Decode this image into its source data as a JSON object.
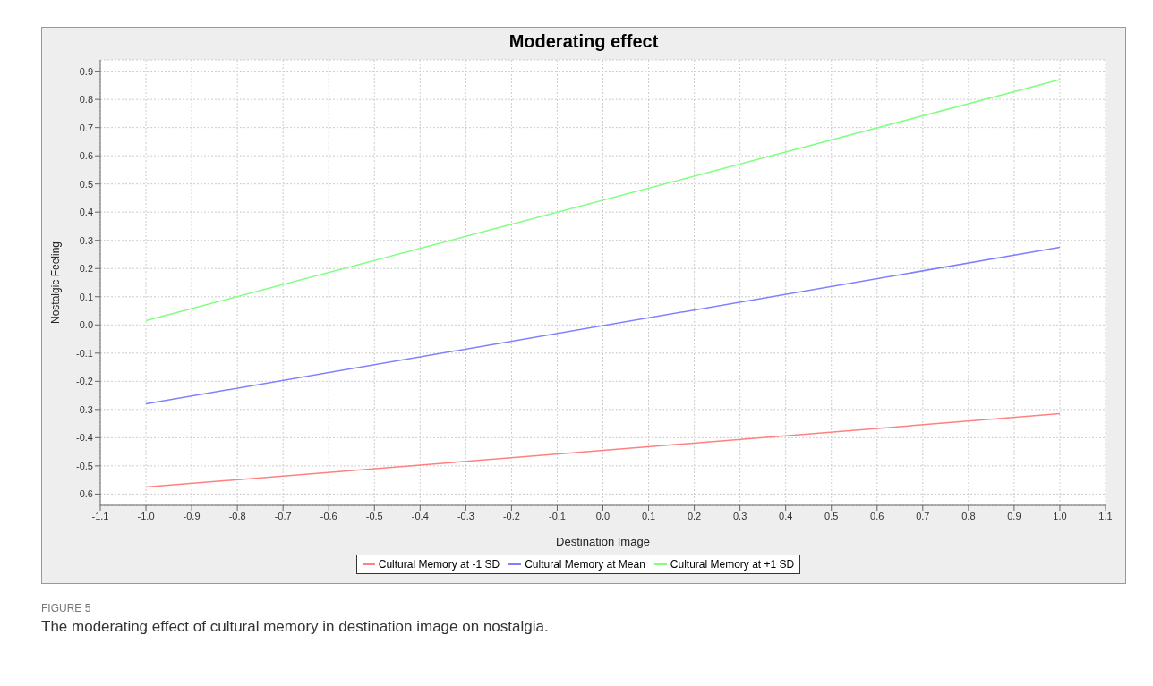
{
  "chart_data": {
    "type": "line",
    "title": "Moderating effect",
    "xlabel": "Destination Image",
    "ylabel": "Nostalgic Feeling",
    "x": [
      -1.0,
      1.0
    ],
    "series": [
      {
        "name": "Cultural Memory at -1 SD",
        "color": "#ff8080",
        "values": [
          -0.575,
          -0.315
        ]
      },
      {
        "name": "Cultural Memory at Mean",
        "color": "#8080ff",
        "values": [
          -0.28,
          0.275
        ]
      },
      {
        "name": "Cultural Memory at +1 SD",
        "color": "#80ff80",
        "values": [
          0.015,
          0.87
        ]
      }
    ],
    "xlim": [
      -1.1,
      1.1
    ],
    "xticks": [
      {
        "value": -1.1,
        "label": "-1.1"
      },
      {
        "value": -1.0,
        "label": "-1.0"
      },
      {
        "value": -0.9,
        "label": "-0.9"
      },
      {
        "value": -0.8,
        "label": "-0.8"
      },
      {
        "value": -0.7,
        "label": "-0.7"
      },
      {
        "value": -0.6,
        "label": "-0.6"
      },
      {
        "value": -0.5,
        "label": "-0.5"
      },
      {
        "value": -0.4,
        "label": "-0.4"
      },
      {
        "value": -0.3,
        "label": "-0.3"
      },
      {
        "value": -0.2,
        "label": "-0.2"
      },
      {
        "value": -0.1,
        "label": "-0.1"
      },
      {
        "value": 0,
        "label": "0.0"
      },
      {
        "value": 0.1,
        "label": "0.1"
      },
      {
        "value": 0.2,
        "label": "0.2"
      },
      {
        "value": 0.3,
        "label": "0.3"
      },
      {
        "value": 0.4,
        "label": "0.4"
      },
      {
        "value": 0.5,
        "label": "0.5"
      },
      {
        "value": 0.6,
        "label": "0.6"
      },
      {
        "value": 0.7,
        "label": "0.7"
      },
      {
        "value": 0.8,
        "label": "0.8"
      },
      {
        "value": 0.9,
        "label": "0.9"
      },
      {
        "value": 1.0,
        "label": "1.0"
      },
      {
        "value": 1.1,
        "label": "1.1"
      }
    ],
    "ylim": [
      -0.64,
      0.94
    ],
    "yticks": [
      {
        "value": -0.6,
        "label": "-0.6"
      },
      {
        "value": -0.5,
        "label": "-0.5"
      },
      {
        "value": -0.4,
        "label": "-0.4"
      },
      {
        "value": -0.3,
        "label": "-0.3"
      },
      {
        "value": -0.2,
        "label": "-0.2"
      },
      {
        "value": -0.1,
        "label": "-0.1"
      },
      {
        "value": 0,
        "label": "0.0"
      },
      {
        "value": 0.1,
        "label": "0.1"
      },
      {
        "value": 0.2,
        "label": "0.2"
      },
      {
        "value": 0.3,
        "label": "0.3"
      },
      {
        "value": 0.4,
        "label": "0.4"
      },
      {
        "value": 0.5,
        "label": "0.5"
      },
      {
        "value": 0.6,
        "label": "0.6"
      },
      {
        "value": 0.7,
        "label": "0.7"
      },
      {
        "value": 0.8,
        "label": "0.8"
      },
      {
        "value": 0.9,
        "label": "0.9"
      }
    ],
    "grid": true,
    "legend": "bottom",
    "marker": "none",
    "line_style": "solid",
    "annotations": [
      "FIGURE 5",
      "The moderating effect of cultural memory in destination image on nostalgia."
    ]
  }
}
